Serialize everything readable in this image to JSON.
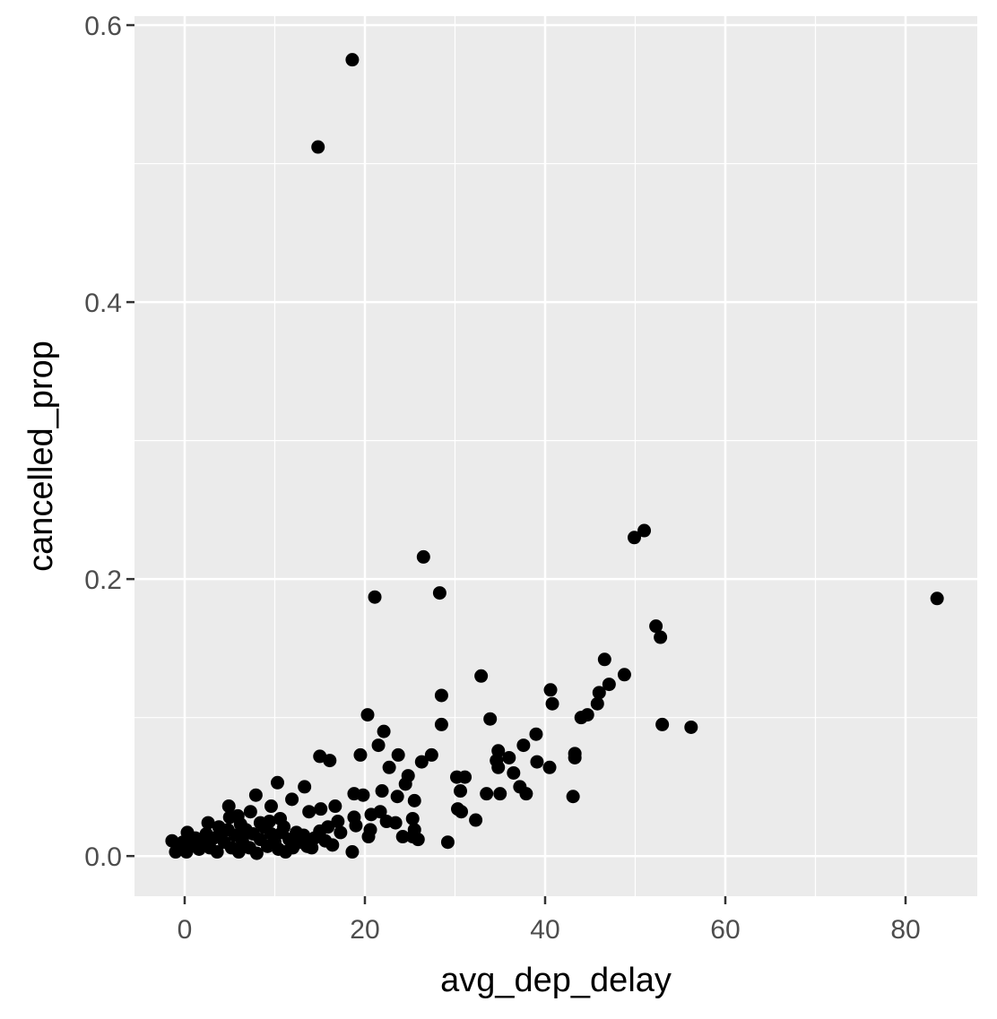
{
  "chart_data": {
    "type": "scatter",
    "x_label": "avg_dep_delay",
    "y_label": "cancelled_prop",
    "color": "#000000",
    "background": "#ebebeb",
    "grid": true,
    "minor_grid": true,
    "xlim": [
      -5.57,
      87.96
    ],
    "ylim": [
      -0.029,
      0.6065
    ],
    "xticks": [
      0,
      20,
      40,
      60,
      80
    ],
    "yticks": [
      {
        "value": 0,
        "label": "0.0"
      },
      0.2,
      0.4,
      0.6
    ],
    "x": [
      18.6,
      14.8,
      26.5,
      21.1,
      28.3,
      49.9,
      51.0,
      83.5,
      52.3,
      52.8,
      46.6,
      48.8,
      47.1,
      32.9,
      40.6,
      46.0,
      28.5,
      40.8,
      45.8,
      44.7,
      44.0,
      20.3,
      33.9,
      28.5,
      53.0,
      56.2,
      22.1,
      39.0,
      21.5,
      37.6,
      43.3,
      34.8,
      23.7,
      15.0,
      19.5,
      27.4,
      43.3,
      16.1,
      34.6,
      36.0,
      26.3,
      39.1,
      22.7,
      34.8,
      40.5,
      36.5,
      10.3,
      30.2,
      31.1,
      24.8,
      24.5,
      13.3,
      37.2,
      30.6,
      21.9,
      7.9,
      18.8,
      19.8,
      33.5,
      35.0,
      37.9,
      43.1,
      23.6,
      25.5,
      11.9,
      4.9,
      9.6,
      16.7,
      15.1,
      30.3,
      30.7,
      13.8,
      7.3,
      21.7,
      5.9,
      18.8,
      20.7,
      25.3,
      32.3,
      2.6,
      10.6,
      17.0,
      22.4,
      23.4,
      19.0,
      15.9,
      20.6,
      25.5,
      0.3,
      17.3,
      20.4,
      24.2,
      25.3,
      25.9,
      29.2,
      -1.4,
      16.4,
      18.6,
      14.1,
      -1.0,
      -0.6,
      -0.2,
      0.2,
      0.6,
      1.2,
      1.6,
      2.0,
      2.4,
      2.8,
      3.2,
      3.6,
      4.0,
      4.4,
      4.8,
      5.2,
      5.6,
      6.0,
      6.4,
      6.8,
      7.2,
      7.6,
      8.0,
      8.4,
      8.8,
      9.2,
      9.6,
      10.0,
      10.4,
      10.8,
      11.2,
      11.6,
      12.0,
      12.4,
      12.8,
      13.2,
      13.6,
      14.4,
      15.0,
      15.6,
      6.2,
      8.4,
      11.0,
      3.8,
      9.4,
      5.0
    ],
    "values": [
      0.575,
      0.512,
      0.216,
      0.187,
      0.19,
      0.23,
      0.235,
      0.186,
      0.166,
      0.158,
      0.142,
      0.131,
      0.124,
      0.13,
      0.12,
      0.118,
      0.116,
      0.11,
      0.11,
      0.102,
      0.1,
      0.102,
      0.099,
      0.095,
      0.095,
      0.093,
      0.09,
      0.088,
      0.08,
      0.08,
      0.074,
      0.076,
      0.073,
      0.072,
      0.073,
      0.073,
      0.071,
      0.069,
      0.069,
      0.071,
      0.068,
      0.068,
      0.064,
      0.064,
      0.064,
      0.06,
      0.053,
      0.057,
      0.057,
      0.058,
      0.052,
      0.05,
      0.05,
      0.047,
      0.047,
      0.044,
      0.045,
      0.044,
      0.045,
      0.045,
      0.045,
      0.043,
      0.043,
      0.04,
      0.041,
      0.036,
      0.036,
      0.036,
      0.034,
      0.034,
      0.032,
      0.032,
      0.032,
      0.032,
      0.029,
      0.028,
      0.03,
      0.027,
      0.026,
      0.024,
      0.027,
      0.025,
      0.025,
      0.024,
      0.022,
      0.021,
      0.019,
      0.019,
      0.017,
      0.017,
      0.014,
      0.014,
      0.014,
      0.012,
      0.01,
      0.011,
      0.008,
      0.003,
      0.006,
      0.003,
      0.006,
      0.01,
      0.003,
      0.008,
      0.013,
      0.005,
      0.01,
      0.016,
      0.006,
      0.013,
      0.003,
      0.017,
      0.01,
      0.019,
      0.006,
      0.015,
      0.003,
      0.011,
      0.019,
      0.006,
      0.016,
      0.002,
      0.012,
      0.021,
      0.007,
      0.016,
      0.01,
      0.005,
      0.017,
      0.003,
      0.012,
      0.006,
      0.017,
      0.01,
      0.015,
      0.007,
      0.013,
      0.018,
      0.011,
      0.023,
      0.024,
      0.021,
      0.021,
      0.025,
      0.028
    ]
  }
}
